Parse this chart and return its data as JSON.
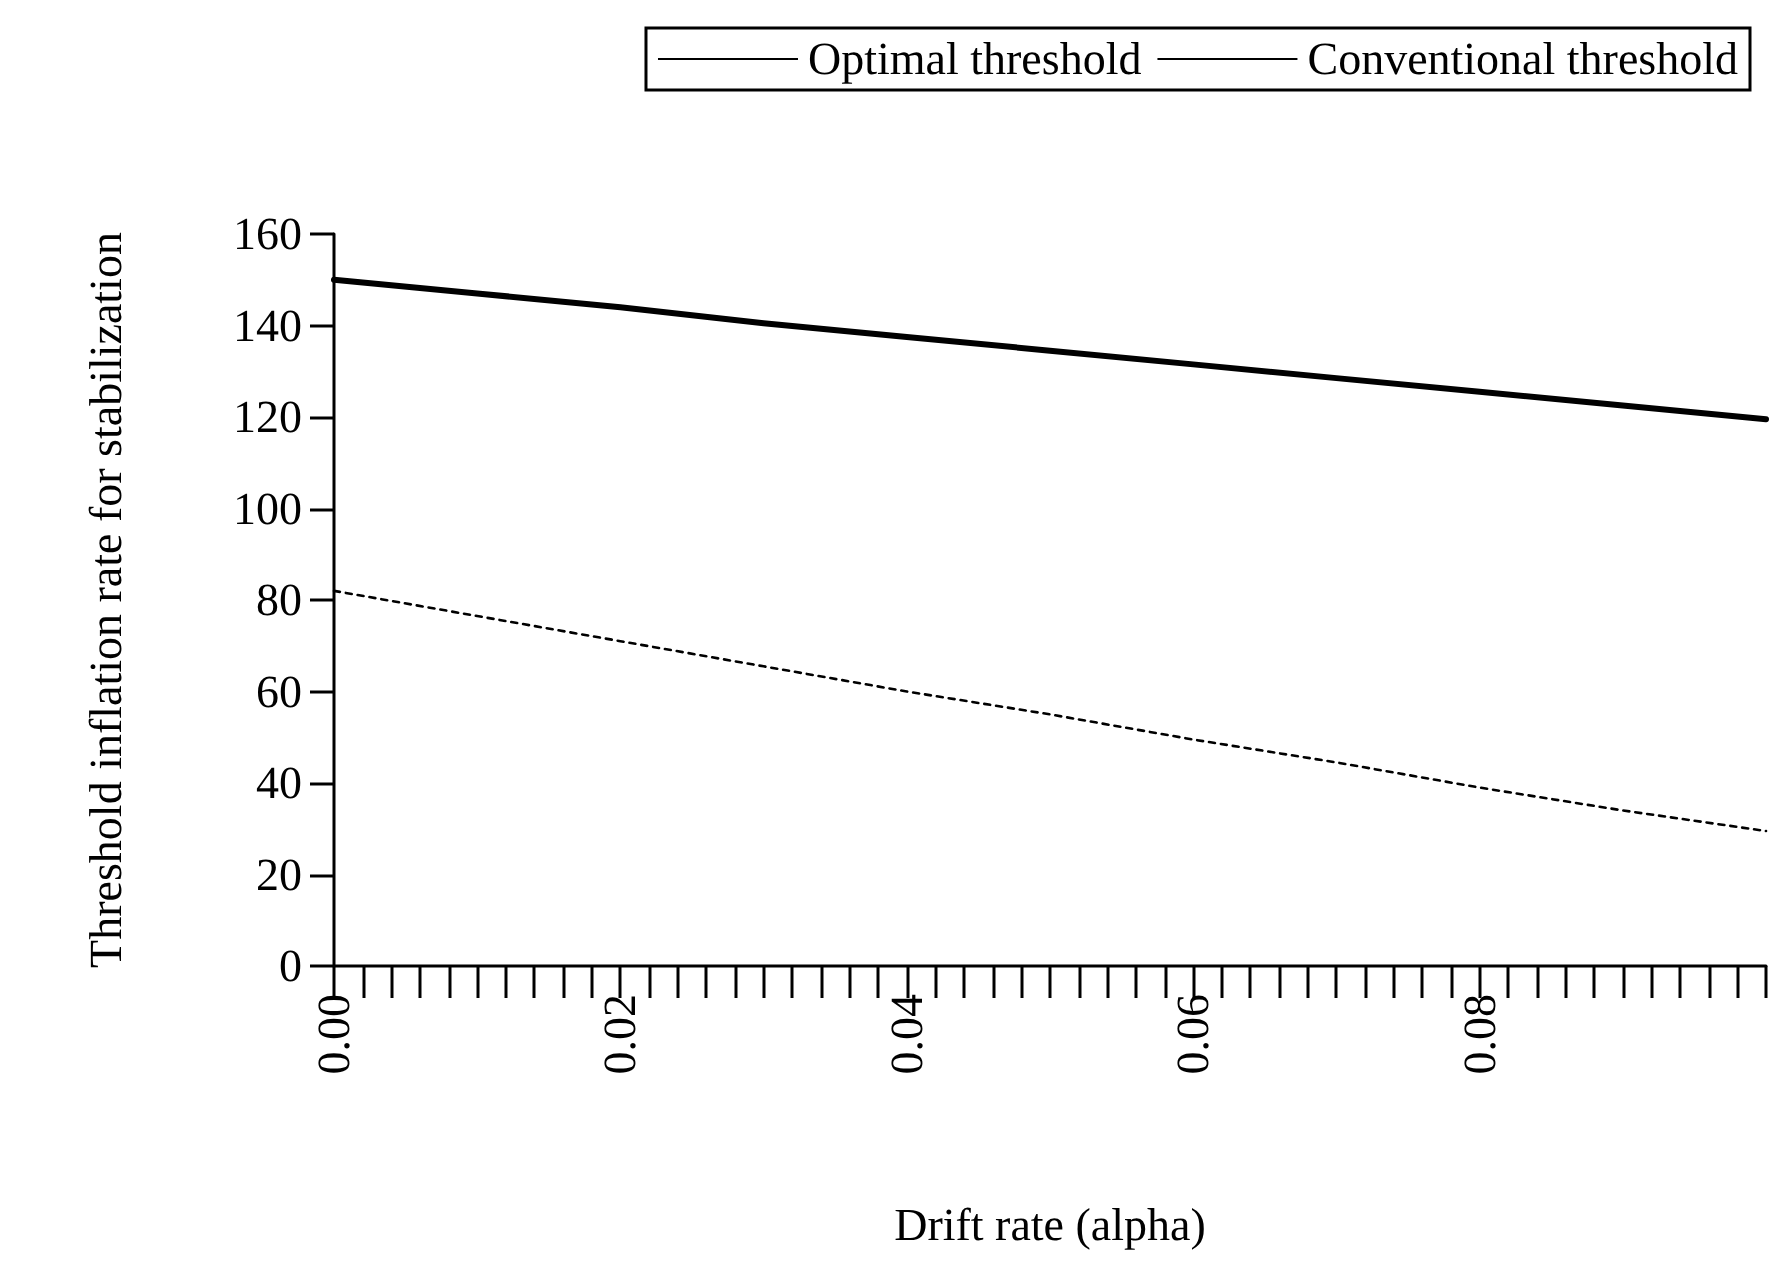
{
  "chart_data": {
    "type": "line",
    "xlabel": "Drift rate (alpha)",
    "ylabel": "Threshold inflation rate for stabilization",
    "x": [
      0,
      0.01,
      0.02,
      0.03,
      0.04,
      0.05,
      0.06,
      0.07,
      0.08,
      0.09,
      0.1
    ],
    "series": [
      {
        "name": "Optimal threshold",
        "color": "#000000",
        "line_style": "solid",
        "values": [
          150,
          147,
          144,
          140.5,
          137.5,
          134.5,
          131.5,
          128.5,
          125.5,
          122.5,
          119.5
        ]
      },
      {
        "name": "Conventional threshold",
        "color": "#000000",
        "line_style": "dotted",
        "values": [
          82,
          76.5,
          71,
          65.5,
          60,
          55,
          49.5,
          44.5,
          39,
          34,
          29.5
        ]
      }
    ],
    "xlim": [
      0,
      0.1
    ],
    "xticks": [
      {
        "value": 0,
        "label": "0.00"
      },
      {
        "value": 0.002,
        "label": null
      },
      {
        "value": 0.004,
        "label": null
      },
      {
        "value": 0.006,
        "label": null
      },
      {
        "value": 0.008,
        "label": null
      },
      {
        "value": 0.01,
        "label": null
      },
      {
        "value": 0.012,
        "label": null
      },
      {
        "value": 0.014,
        "label": null
      },
      {
        "value": 0.016,
        "label": null
      },
      {
        "value": 0.018,
        "label": null
      },
      {
        "value": 0.02,
        "label": "0.02"
      },
      {
        "value": 0.022,
        "label": null
      },
      {
        "value": 0.024,
        "label": null
      },
      {
        "value": 0.026,
        "label": null
      },
      {
        "value": 0.028,
        "label": null
      },
      {
        "value": 0.03,
        "label": null
      },
      {
        "value": 0.032,
        "label": null
      },
      {
        "value": 0.034,
        "label": null
      },
      {
        "value": 0.036,
        "label": null
      },
      {
        "value": 0.038,
        "label": null
      },
      {
        "value": 0.04,
        "label": "0.04"
      },
      {
        "value": 0.042,
        "label": null
      },
      {
        "value": 0.044,
        "label": null
      },
      {
        "value": 0.046,
        "label": null
      },
      {
        "value": 0.048,
        "label": null
      },
      {
        "value": 0.05,
        "label": null
      },
      {
        "value": 0.052,
        "label": null
      },
      {
        "value": 0.054,
        "label": null
      },
      {
        "value": 0.056,
        "label": null
      },
      {
        "value": 0.058,
        "label": null
      },
      {
        "value": 0.06,
        "label": "0.06"
      },
      {
        "value": 0.062,
        "label": null
      },
      {
        "value": 0.064,
        "label": null
      },
      {
        "value": 0.066,
        "label": null
      },
      {
        "value": 0.068,
        "label": null
      },
      {
        "value": 0.07,
        "label": null
      },
      {
        "value": 0.072,
        "label": null
      },
      {
        "value": 0.074,
        "label": null
      },
      {
        "value": 0.076,
        "label": null
      },
      {
        "value": 0.078,
        "label": null
      },
      {
        "value": 0.08,
        "label": "0.08"
      },
      {
        "value": 0.082,
        "label": null
      },
      {
        "value": 0.084,
        "label": null
      },
      {
        "value": 0.086,
        "label": null
      },
      {
        "value": 0.088,
        "label": null
      },
      {
        "value": 0.09,
        "label": null
      },
      {
        "value": 0.092,
        "label": null
      },
      {
        "value": 0.094,
        "label": null
      },
      {
        "value": 0.096,
        "label": null
      },
      {
        "value": 0.098,
        "label": null
      },
      {
        "value": 0.1,
        "label": null
      }
    ],
    "ylim": [
      0,
      160
    ],
    "yticks": [
      0,
      20,
      40,
      60,
      80,
      100,
      120,
      140,
      160
    ],
    "grid": false,
    "legend": "top right",
    "marker": "none"
  }
}
